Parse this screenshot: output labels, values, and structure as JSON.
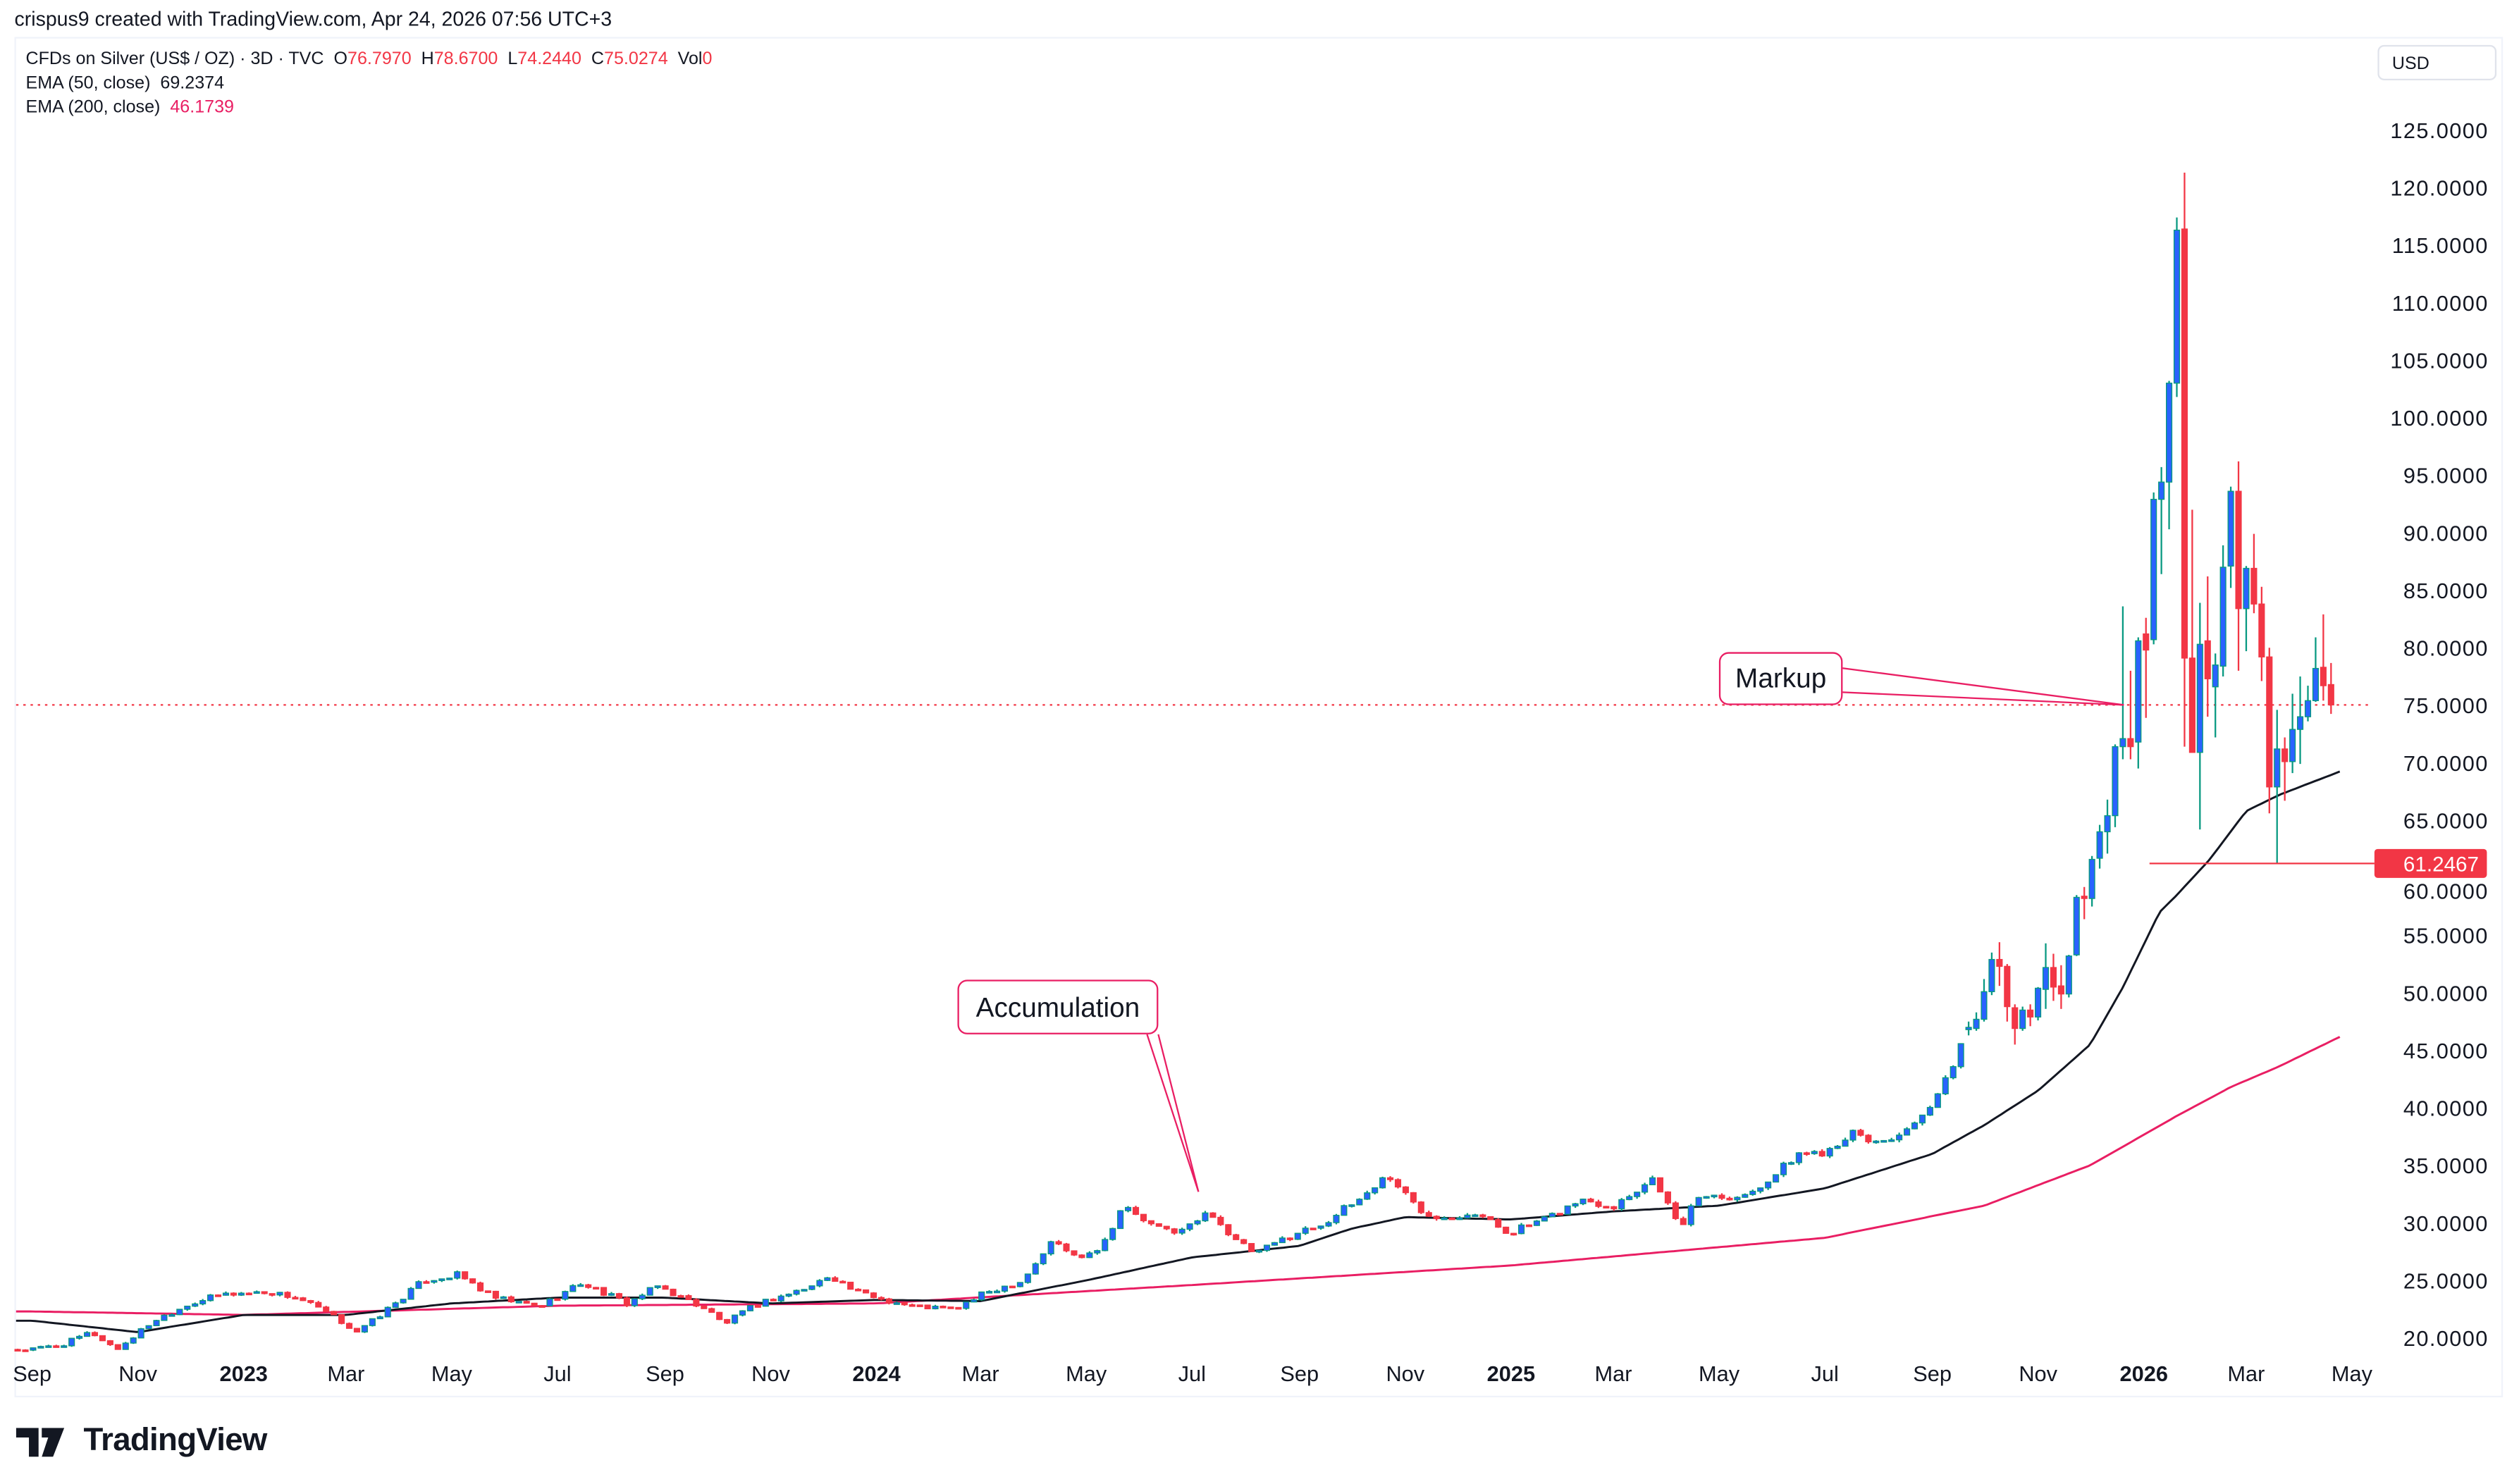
{
  "header": {
    "credit": "crispus9 created with TradingView.com, Apr 24, 2026 07:56 UTC+3"
  },
  "legend": {
    "symbol": "CFDs on Silver (US$ / OZ) · 3D · TVC",
    "o_label": "O",
    "o": "76.7970",
    "h_label": "H",
    "h": "78.6700",
    "l_label": "L",
    "l": "74.2440",
    "c_label": "C",
    "c": "75.0274",
    "vol_label": "Vol",
    "vol": "0",
    "ema50_label": "EMA (50, close)",
    "ema50": "69.2374",
    "ema200_label": "EMA (200, close)",
    "ema200": "46.1739"
  },
  "currency_button": "USD",
  "annotations": {
    "markup": "Markup",
    "accumulation": "Accumulation"
  },
  "price_marker": {
    "label": "61.2467",
    "value": 61.2467
  },
  "footer": {
    "brand": "TradingView"
  },
  "colors": {
    "up_body": "#2962ff",
    "up_wick": "#089981",
    "down": "#f23645",
    "ema50": "#131722",
    "ema200": "#e91e63",
    "annotation": "#e91e63"
  },
  "chart_data": {
    "type": "candlestick",
    "title": "CFDs on Silver (US$ / OZ) · 3D · TVC",
    "ylabel": "USD",
    "ylim": [
      20,
      125
    ],
    "yticks": [
      "20.0000",
      "25.0000",
      "30.0000",
      "35.0000",
      "40.0000",
      "45.0000",
      "50.0000",
      "55.0000",
      "60.0000",
      "65.0000",
      "70.0000",
      "75.0000",
      "80.0000",
      "85.0000",
      "90.0000",
      "95.0000",
      "100.0000",
      "105.0000",
      "110.0000",
      "115.0000",
      "120.0000",
      "125.0000"
    ],
    "xticks": [
      {
        "label": "Sep",
        "date": "2022-09-01"
      },
      {
        "label": "Nov",
        "date": "2022-11-01"
      },
      {
        "label": "2023",
        "date": "2023-01-01",
        "bold": true
      },
      {
        "label": "Mar",
        "date": "2023-03-01"
      },
      {
        "label": "May",
        "date": "2023-05-01"
      },
      {
        "label": "Jul",
        "date": "2023-07-01"
      },
      {
        "label": "Sep",
        "date": "2023-09-01"
      },
      {
        "label": "Nov",
        "date": "2023-11-01"
      },
      {
        "label": "2024",
        "date": "2024-01-01",
        "bold": true
      },
      {
        "label": "Mar",
        "date": "2024-03-01"
      },
      {
        "label": "May",
        "date": "2024-05-01"
      },
      {
        "label": "Jul",
        "date": "2024-07-01"
      },
      {
        "label": "Sep",
        "date": "2024-09-01"
      },
      {
        "label": "Nov",
        "date": "2024-11-01"
      },
      {
        "label": "2025",
        "date": "2025-01-01",
        "bold": true
      },
      {
        "label": "Mar",
        "date": "2025-03-01"
      },
      {
        "label": "May",
        "date": "2025-05-01"
      },
      {
        "label": "Jul",
        "date": "2025-07-01"
      },
      {
        "label": "Sep",
        "date": "2025-09-01"
      },
      {
        "label": "Nov",
        "date": "2025-11-01"
      },
      {
        "label": "2026",
        "date": "2026-01-01",
        "bold": true
      },
      {
        "label": "Mar",
        "date": "2026-03-01"
      },
      {
        "label": "May",
        "date": "2026-05-01"
      }
    ],
    "last_price": 75.0274,
    "price_path_early": [
      [
        "2022-09-01",
        19
      ],
      [
        "2022-09-20",
        19.5
      ],
      [
        "2022-10-05",
        20.5
      ],
      [
        "2022-10-20",
        19
      ],
      [
        "2022-11-10",
        21.5
      ],
      [
        "2022-12-01",
        23
      ],
      [
        "2022-12-20",
        23.8
      ],
      [
        "2023-01-15",
        24
      ],
      [
        "2023-02-01",
        23.5
      ],
      [
        "2023-02-20",
        22
      ],
      [
        "2023-03-08",
        20.5
      ],
      [
        "2023-03-25",
        22.5
      ],
      [
        "2023-04-15",
        25
      ],
      [
        "2023-05-05",
        25.5
      ],
      [
        "2023-05-25",
        23.5
      ],
      [
        "2023-06-20",
        22.7
      ],
      [
        "2023-07-15",
        24.8
      ],
      [
        "2023-08-10",
        23
      ],
      [
        "2023-08-28",
        24.5
      ],
      [
        "2023-09-25",
        22.5
      ],
      [
        "2023-10-05",
        21.2
      ],
      [
        "2023-10-25",
        23
      ],
      [
        "2023-11-25",
        24.5
      ],
      [
        "2023-12-05",
        25.5
      ],
      [
        "2023-12-20",
        24
      ],
      [
        "2024-01-20",
        22.8
      ],
      [
        "2024-02-15",
        22.5
      ],
      [
        "2024-03-05",
        24
      ],
      [
        "2024-03-25",
        25
      ],
      [
        "2024-04-12",
        28.5
      ],
      [
        "2024-04-25",
        27
      ],
      [
        "2024-05-10",
        28
      ],
      [
        "2024-05-22",
        31.5
      ],
      [
        "2024-06-10",
        29.5
      ],
      [
        "2024-06-25",
        29.3
      ],
      [
        "2024-07-12",
        31
      ],
      [
        "2024-07-25",
        28.5
      ],
      [
        "2024-08-07",
        27.3
      ],
      [
        "2024-08-25",
        28.8
      ],
      [
        "2024-09-15",
        30
      ],
      [
        "2024-10-05",
        32
      ],
      [
        "2024-10-22",
        34.2
      ],
      [
        "2024-11-10",
        31
      ],
      [
        "2024-11-25",
        30.5
      ],
      [
        "2024-12-10",
        31
      ],
      [
        "2024-12-30",
        29.2
      ],
      [
        "2025-01-20",
        30.2
      ],
      [
        "2025-02-10",
        32
      ],
      [
        "2025-03-01",
        31.5
      ],
      [
        "2025-03-25",
        34
      ],
      [
        "2025-04-08",
        29.5
      ],
      [
        "2025-04-20",
        32.5
      ],
      [
        "2025-05-15",
        32.3
      ],
      [
        "2025-06-05",
        34.5
      ],
      [
        "2025-06-15",
        36
      ],
      [
        "2025-07-01",
        36.2
      ],
      [
        "2025-07-15",
        37.8
      ],
      [
        "2025-07-30",
        37
      ],
      [
        "2025-08-20",
        38
      ],
      [
        "2025-09-05",
        41
      ],
      [
        "2025-09-20",
        46.5
      ]
    ],
    "candles_recent_ohlc": [
      [
        46.8,
        47.5,
        46.3,
        47.0
      ],
      [
        46.9,
        48.3,
        46.7,
        47.7
      ],
      [
        47.7,
        51.2,
        47.5,
        50.1
      ],
      [
        50.1,
        53.5,
        49.8,
        52.9
      ],
      [
        52.9,
        54.4,
        50.6,
        52.3
      ],
      [
        52.3,
        52.5,
        47.5,
        48.8
      ],
      [
        48.7,
        49.0,
        45.5,
        46.9
      ],
      [
        46.9,
        48.8,
        46.7,
        48.5
      ],
      [
        48.5,
        49.0,
        47.1,
        47.9
      ],
      [
        47.9,
        50.5,
        47.6,
        50.4
      ],
      [
        50.3,
        54.3,
        48.6,
        52.2
      ],
      [
        52.2,
        53.4,
        49.3,
        50.5
      ],
      [
        50.6,
        52.4,
        48.6,
        49.9
      ],
      [
        49.9,
        53.3,
        49.6,
        53.2
      ],
      [
        53.3,
        58.5,
        53.2,
        58.3
      ],
      [
        58.4,
        59.2,
        56.4,
        58.2
      ],
      [
        58.2,
        61.9,
        57.5,
        61.6
      ],
      [
        61.7,
        64.6,
        60.8,
        64.0
      ],
      [
        64.0,
        66.8,
        62.1,
        65.4
      ],
      [
        65.4,
        71.6,
        64.4,
        71.4
      ],
      [
        71.4,
        83.6,
        70.3,
        72.1
      ],
      [
        72.1,
        78.0,
        70.3,
        71.4
      ],
      [
        71.8,
        80.9,
        69.5,
        80.6
      ],
      [
        81.2,
        82.6,
        73.9,
        79.8
      ],
      [
        80.7,
        93.5,
        80.3,
        92.9
      ],
      [
        92.9,
        95.7,
        86.4,
        94.4
      ],
      [
        94.4,
        103.2,
        90.3,
        103.0
      ],
      [
        103.0,
        117.4,
        101.8,
        116.3
      ],
      [
        116.4,
        121.3,
        71.4,
        79.1
      ],
      [
        79.1,
        92.0,
        70.9,
        70.9
      ],
      [
        70.9,
        83.9,
        64.2,
        80.3
      ],
      [
        80.6,
        86.2,
        74.0,
        77.3
      ],
      [
        76.6,
        79.5,
        72.2,
        78.5
      ],
      [
        78.4,
        88.9,
        77.5,
        87.0
      ],
      [
        87.1,
        94.0,
        85.2,
        93.6
      ],
      [
        93.6,
        96.2,
        78.0,
        83.4
      ],
      [
        83.4,
        87.1,
        79.7,
        86.9
      ],
      [
        86.9,
        89.9,
        83.0,
        83.8
      ],
      [
        83.8,
        85.3,
        77.1,
        79.2
      ],
      [
        79.2,
        80.0,
        65.6,
        67.9
      ],
      [
        67.9,
        74.6,
        61.2467,
        71.2
      ],
      [
        71.2,
        72.2,
        66.7,
        70.1
      ],
      [
        70.1,
        76.0,
        69.1,
        72.9
      ],
      [
        72.9,
        77.5,
        69.9,
        74.0
      ],
      [
        74.0,
        76.7,
        73.6,
        75.4
      ],
      [
        75.4,
        80.9,
        75.3,
        78.2
      ],
      [
        78.3,
        82.9,
        75.4,
        76.7
      ],
      [
        76.797,
        78.67,
        74.244,
        75.0274
      ]
    ],
    "ema50_path": [
      [
        "2022-09-01",
        21.5
      ],
      [
        "2022-11-01",
        20.5
      ],
      [
        "2023-01-01",
        22
      ],
      [
        "2023-03-01",
        22
      ],
      [
        "2023-05-01",
        23
      ],
      [
        "2023-07-01",
        23.5
      ],
      [
        "2023-09-01",
        23.5
      ],
      [
        "2023-11-01",
        23
      ],
      [
        "2024-01-01",
        23.3
      ],
      [
        "2024-03-01",
        23.2
      ],
      [
        "2024-05-01",
        25
      ],
      [
        "2024-07-01",
        27
      ],
      [
        "2024-08-01",
        27.5
      ],
      [
        "2024-09-01",
        28
      ],
      [
        "2024-10-01",
        29.5
      ],
      [
        "2024-11-01",
        30.5
      ],
      [
        "2025-01-01",
        30.3
      ],
      [
        "2025-03-01",
        31
      ],
      [
        "2025-05-01",
        31.5
      ],
      [
        "2025-07-01",
        33
      ],
      [
        "2025-09-01",
        36
      ],
      [
        "2025-10-01",
        38.5
      ],
      [
        "2025-11-01",
        41.5
      ],
      [
        "2025-12-01",
        45.5
      ],
      [
        "2025-12-20",
        50.5
      ],
      [
        "2026-01-10",
        57
      ],
      [
        "2026-01-20",
        58.5
      ],
      [
        "2026-02-08",
        61.6
      ],
      [
        "2026-03-01",
        65.8
      ],
      [
        "2026-03-20",
        67.2
      ],
      [
        "2026-04-24",
        69.2374
      ]
    ],
    "ema200_path": [
      [
        "2022-09-01",
        22.3
      ],
      [
        "2023-01-01",
        22
      ],
      [
        "2023-07-01",
        22.8
      ],
      [
        "2024-01-01",
        23
      ],
      [
        "2024-07-01",
        24.6
      ],
      [
        "2025-01-01",
        26.3
      ],
      [
        "2025-07-01",
        28.7
      ],
      [
        "2025-10-01",
        31.5
      ],
      [
        "2025-12-01",
        35
      ],
      [
        "2026-01-20",
        39.3
      ],
      [
        "2026-02-20",
        41.8
      ],
      [
        "2026-03-20",
        43.6
      ],
      [
        "2026-04-24",
        46.1739
      ]
    ]
  }
}
